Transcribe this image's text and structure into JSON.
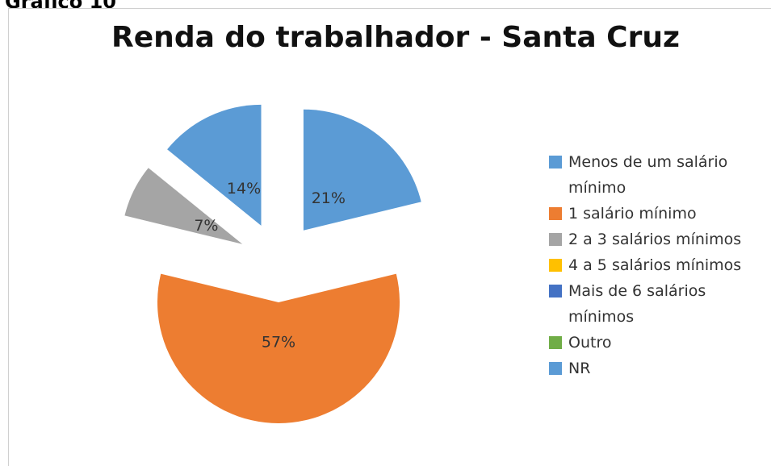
{
  "caption": "Gráfico 10",
  "chart_data": {
    "type": "pie",
    "title": "Renda do trabalhador - Santa Cruz",
    "categories": [
      "Menos de um salário mínimo",
      "1 salário mínimo",
      "2 a 3 salários mínimos",
      "4 a 5 salários mínimos",
      "Mais de 6 salários mínimos",
      "Outro",
      "NR"
    ],
    "values": [
      21,
      57,
      7,
      0,
      0,
      0,
      14
    ],
    "value_labels": [
      "21%",
      "57%",
      "7%",
      null,
      null,
      null,
      "14%"
    ],
    "colors": [
      "#5b9bd5",
      "#ed7d31",
      "#a5a5a5",
      "#ffc000",
      "#4472c4",
      "#70ad47",
      "#5b9bd5"
    ],
    "exploded": true,
    "legend": "right"
  }
}
